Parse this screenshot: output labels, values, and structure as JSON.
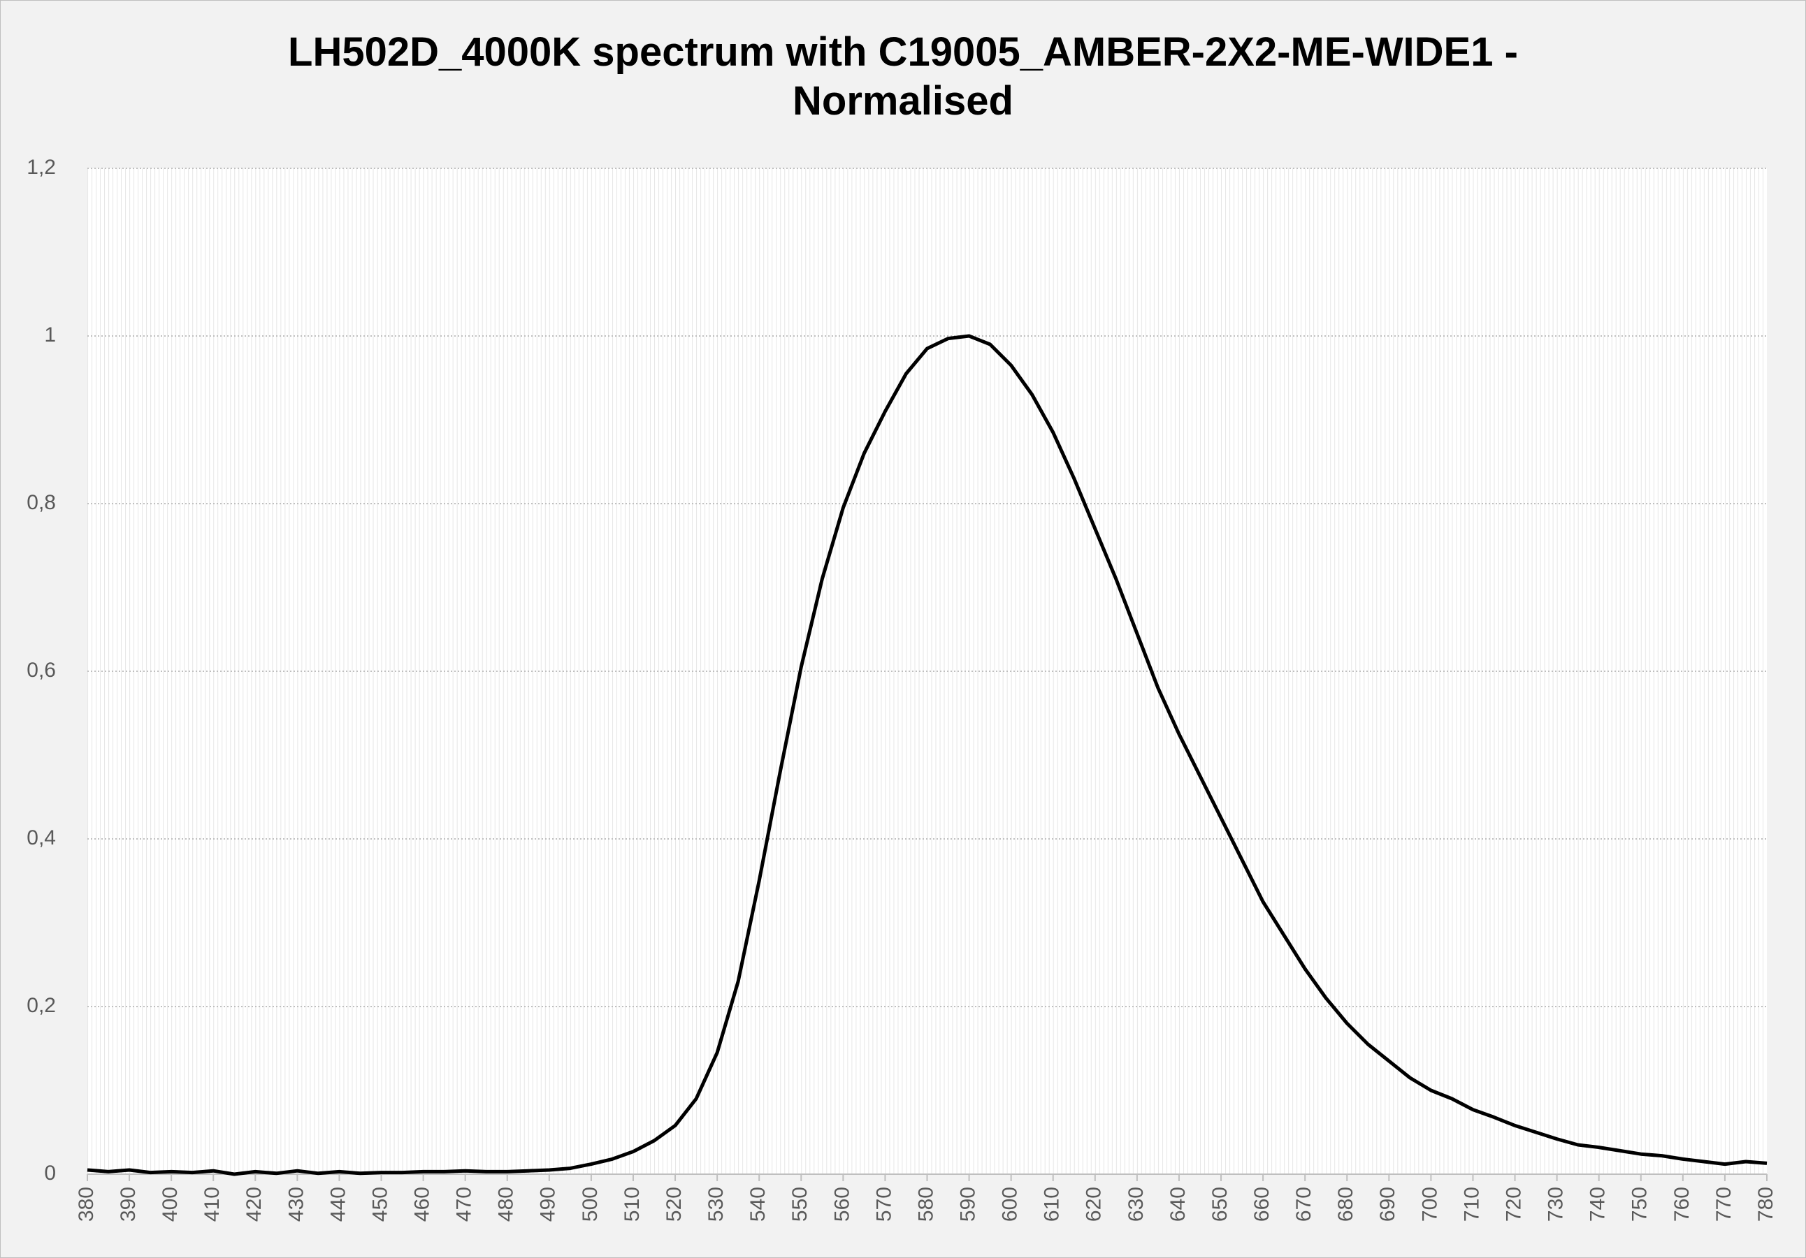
{
  "chart_data": {
    "type": "line",
    "title": "LH502D_4000K spectrum with C19005_AMBER-2X2-ME-WIDE1 - Normalised",
    "x": [
      380,
      385,
      390,
      395,
      400,
      405,
      410,
      415,
      420,
      425,
      430,
      435,
      440,
      445,
      450,
      455,
      460,
      465,
      470,
      475,
      480,
      485,
      490,
      495,
      500,
      505,
      510,
      515,
      520,
      525,
      530,
      535,
      540,
      545,
      550,
      555,
      560,
      565,
      570,
      575,
      580,
      585,
      590,
      595,
      600,
      605,
      610,
      615,
      620,
      625,
      630,
      635,
      640,
      645,
      650,
      655,
      660,
      665,
      670,
      675,
      680,
      685,
      690,
      695,
      700,
      705,
      710,
      715,
      720,
      725,
      730,
      735,
      740,
      745,
      750,
      755,
      760,
      765,
      770,
      775,
      780
    ],
    "series": [
      {
        "color": "#000000",
        "values": [
          0.005,
          0.003,
          0.005,
          0.002,
          0.003,
          0.002,
          0.004,
          0.0,
          0.003,
          0.001,
          0.004,
          0.001,
          0.003,
          0.001,
          0.002,
          0.002,
          0.003,
          0.003,
          0.004,
          0.003,
          0.003,
          0.004,
          0.005,
          0.007,
          0.012,
          0.018,
          0.027,
          0.04,
          0.058,
          0.09,
          0.145,
          0.23,
          0.35,
          0.48,
          0.605,
          0.71,
          0.795,
          0.86,
          0.91,
          0.955,
          0.985,
          0.997,
          1.0,
          0.99,
          0.965,
          0.93,
          0.885,
          0.83,
          0.77,
          0.71,
          0.645,
          0.58,
          0.525,
          0.475,
          0.425,
          0.375,
          0.325,
          0.285,
          0.245,
          0.21,
          0.18,
          0.155,
          0.135,
          0.115,
          0.1,
          0.09,
          0.077,
          0.068,
          0.058,
          0.05,
          0.042,
          0.035,
          0.032,
          0.028,
          0.024,
          0.022,
          0.018,
          0.015,
          0.012,
          0.015,
          0.013
        ]
      }
    ],
    "xlim": [
      380,
      780
    ],
    "xticks": [
      380,
      390,
      400,
      410,
      420,
      430,
      440,
      450,
      460,
      470,
      480,
      490,
      500,
      510,
      520,
      530,
      540,
      550,
      560,
      570,
      580,
      590,
      600,
      610,
      620,
      630,
      640,
      650,
      660,
      670,
      680,
      690,
      700,
      710,
      720,
      730,
      740,
      750,
      760,
      770,
      780
    ],
    "ylim": [
      0,
      1.2
    ],
    "yticks": [
      0,
      {
        "value": 0.2,
        "label": "0,2"
      },
      {
        "value": 0.4,
        "label": "0,4"
      },
      {
        "value": 0.6,
        "label": "0,6"
      },
      {
        "value": 0.8,
        "label": "0,8"
      },
      1,
      {
        "value": 1.2,
        "label": "1,2"
      }
    ],
    "grid": true
  }
}
